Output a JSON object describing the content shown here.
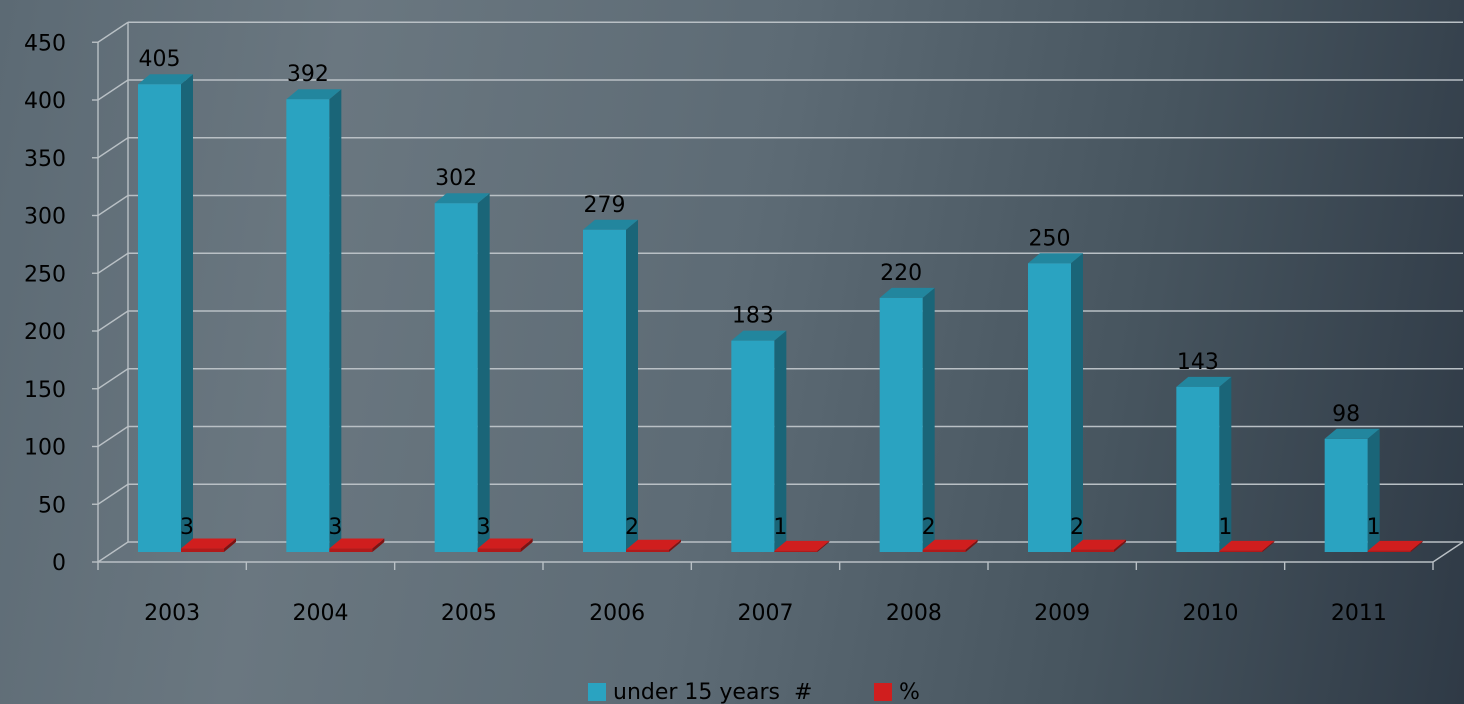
{
  "chart_data": {
    "type": "bar",
    "categories": [
      "2003",
      "2004",
      "2005",
      "2006",
      "2007",
      "2008",
      "2009",
      "2010",
      "2011"
    ],
    "series": [
      {
        "name": "under 15 years  #",
        "values": [
          405,
          392,
          302,
          279,
          183,
          220,
          250,
          143,
          98
        ],
        "color": "#2aa3c1"
      },
      {
        "name": "%",
        "values": [
          3,
          3,
          3,
          2,
          1,
          2,
          2,
          1,
          1
        ],
        "color": "#d01e1e"
      }
    ],
    "y_ticks": [
      "0",
      "50",
      "100",
      "150",
      "200",
      "250",
      "300",
      "350",
      "400",
      "450"
    ],
    "ylim": [
      0,
      450
    ],
    "grid": true,
    "legend_position": "bottom",
    "style": "3d-columns"
  }
}
